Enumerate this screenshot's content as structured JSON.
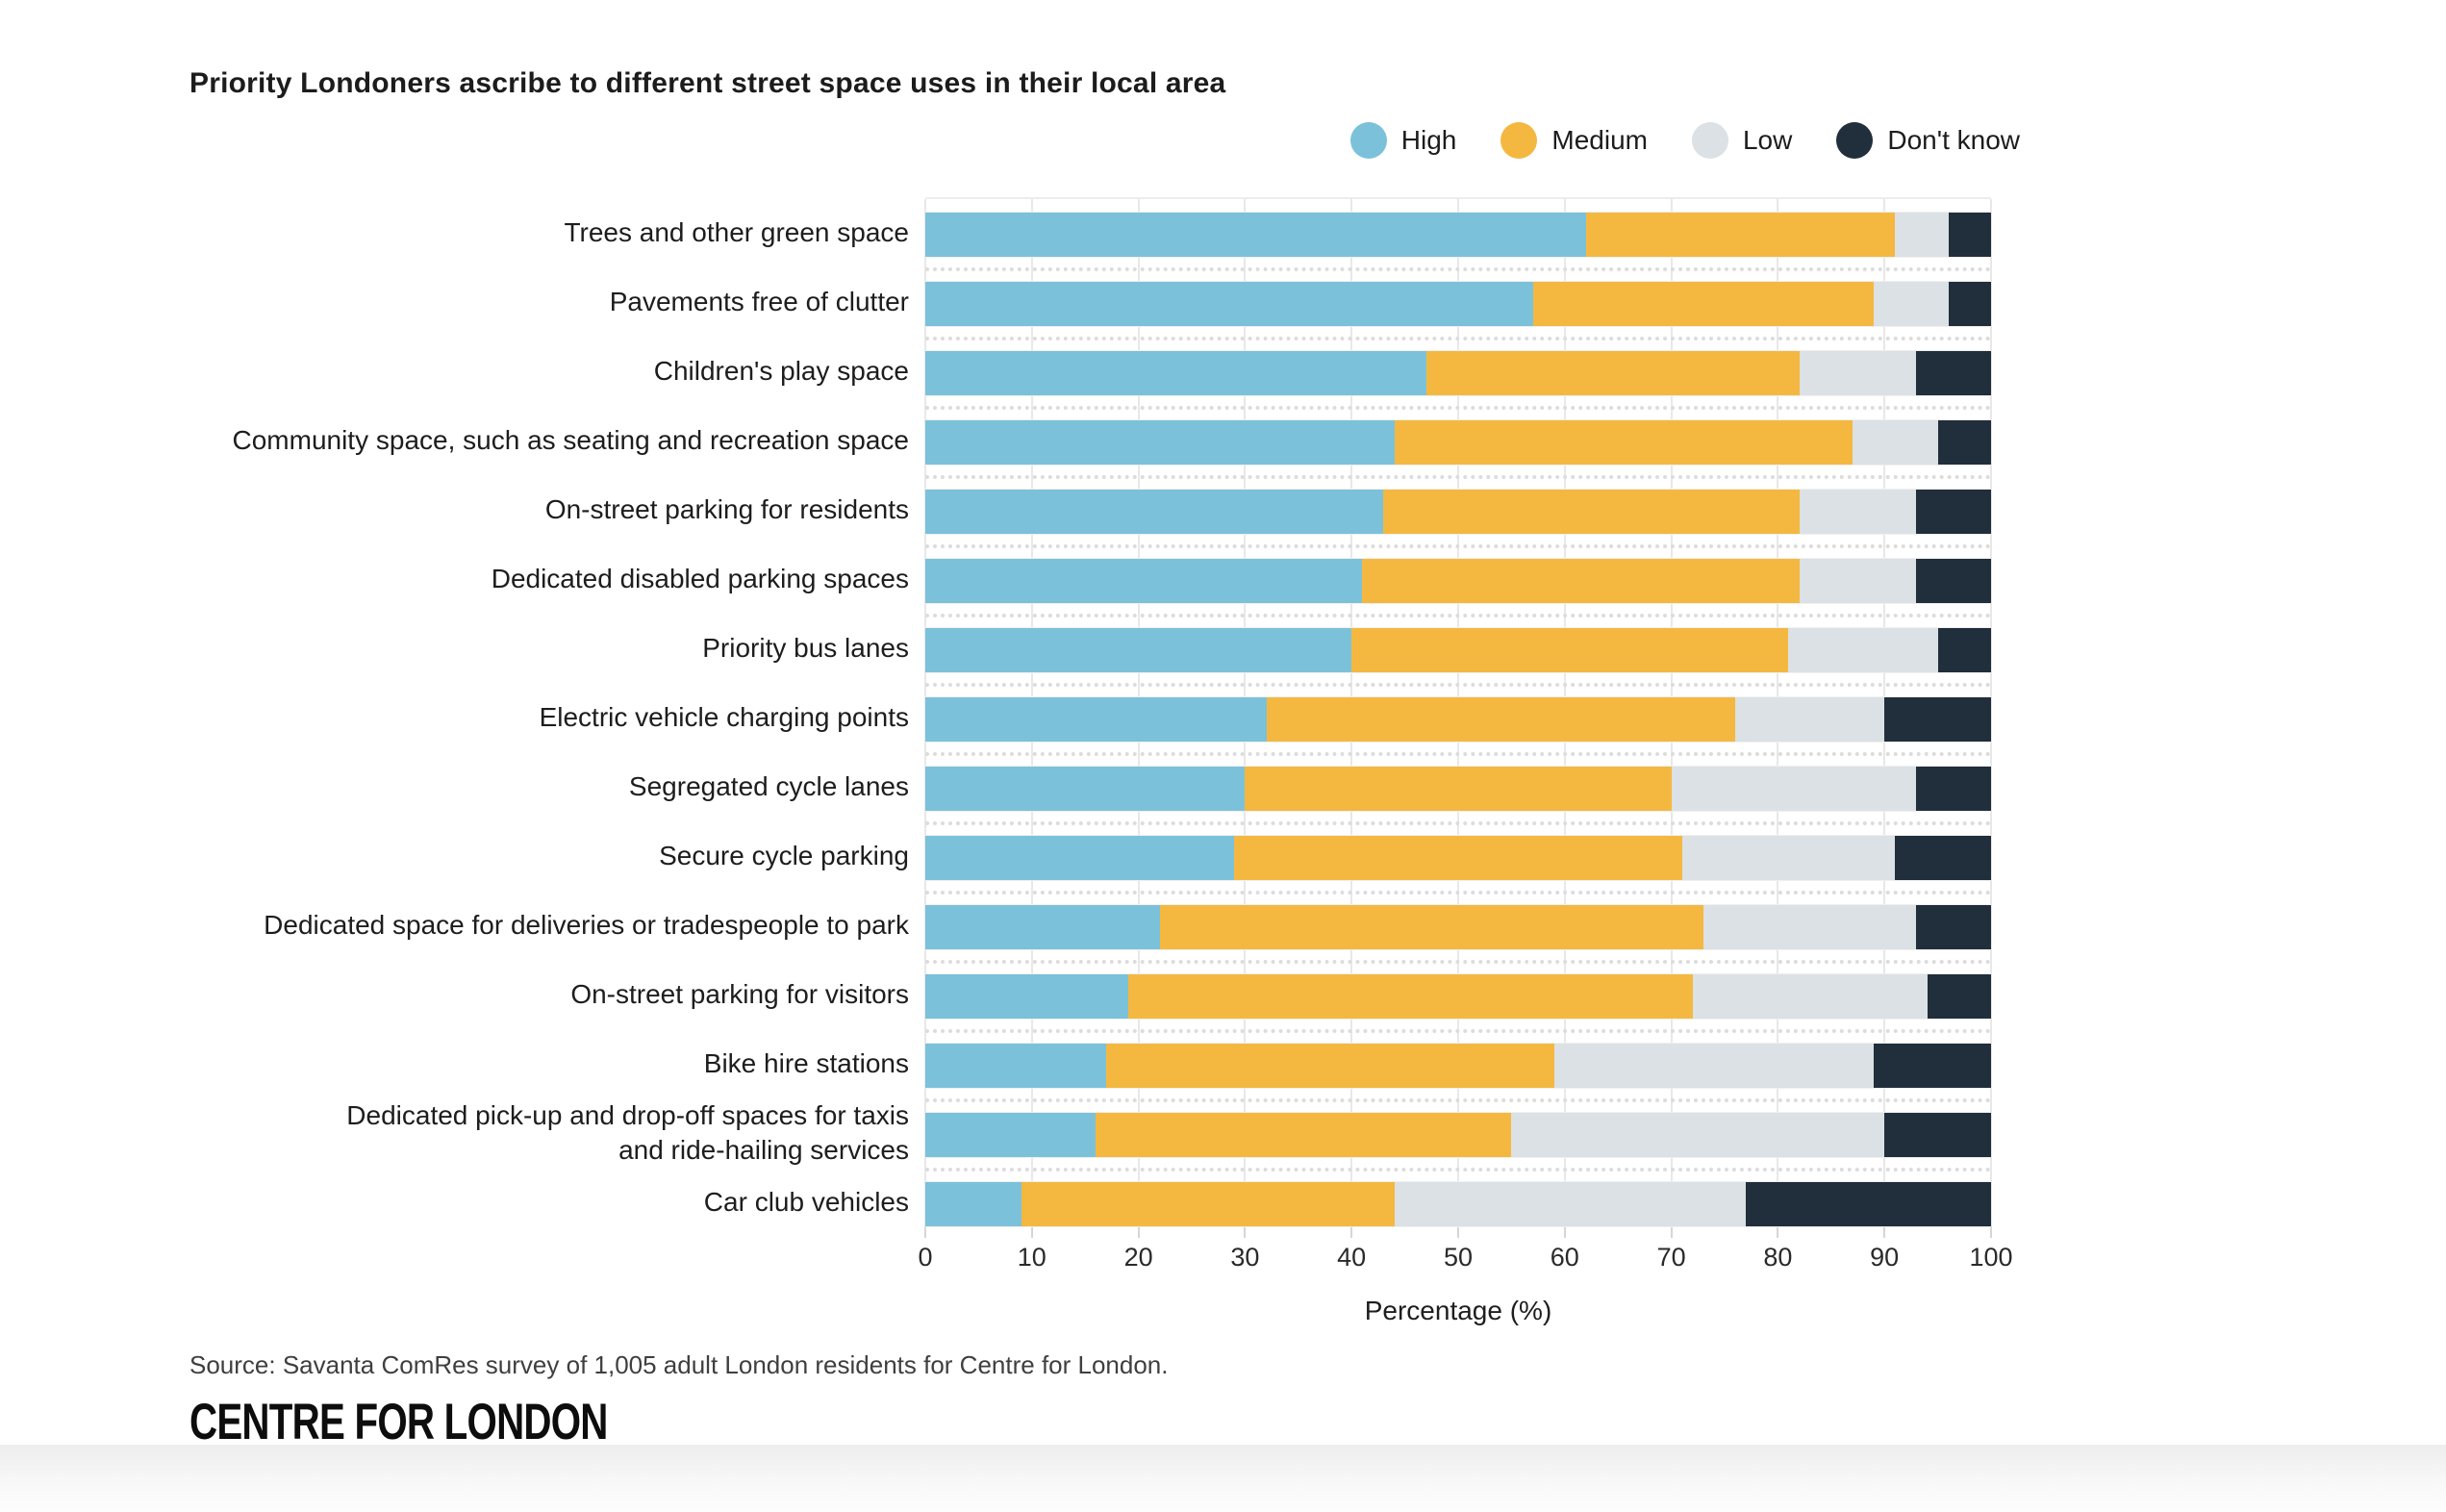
{
  "title": "Priority Londoners ascribe to different street space uses in their local area",
  "legend": {
    "items": [
      {
        "label": "High",
        "color": "#7cc1da"
      },
      {
        "label": "Medium",
        "color": "#f4b841"
      },
      {
        "label": "Low",
        "color": "#dbe1e4"
      },
      {
        "label": "Don't know",
        "color": "#212e3b"
      }
    ]
  },
  "chart_data": {
    "type": "bar",
    "orientation": "horizontal",
    "stacked": true,
    "title": "Priority Londoners ascribe to different street space uses in their local area",
    "xlabel": "Percentage (%)",
    "xlim": [
      0,
      100
    ],
    "x_ticks": [
      0,
      10,
      20,
      30,
      40,
      50,
      60,
      70,
      80,
      90,
      100
    ],
    "grid": "vertical-solid, horizontal-dashed-between-rows",
    "legend_position": "top-right",
    "categories": [
      "Trees and other green space",
      "Pavements free of clutter",
      "Children's play space",
      "Community space, such as seating and recreation space",
      "On-street parking for residents",
      "Dedicated disabled parking spaces",
      "Priority bus lanes",
      "Electric vehicle charging points",
      "Segregated cycle lanes",
      "Secure cycle parking",
      "Dedicated space for deliveries or tradespeople to park",
      "On-street parking for visitors",
      "Bike hire stations",
      "Dedicated pick-up and drop-off spaces for taxis\nand ride-hailing services",
      "Car club vehicles"
    ],
    "series": [
      {
        "name": "High",
        "color": "#7cc1da",
        "values": [
          62,
          57,
          47,
          44,
          43,
          41,
          40,
          32,
          30,
          29,
          22,
          19,
          17,
          16,
          9
        ]
      },
      {
        "name": "Medium",
        "color": "#f4b841",
        "values": [
          29,
          32,
          35,
          43,
          39,
          41,
          41,
          44,
          40,
          42,
          51,
          53,
          42,
          39,
          35
        ]
      },
      {
        "name": "Low",
        "color": "#dbe1e4",
        "values": [
          5,
          7,
          11,
          8,
          11,
          11,
          14,
          14,
          23,
          20,
          20,
          22,
          30,
          35,
          33
        ]
      },
      {
        "name": "Don't know",
        "color": "#212e3b",
        "values": [
          4,
          4,
          7,
          5,
          7,
          7,
          5,
          10,
          7,
          9,
          7,
          6,
          11,
          10,
          23
        ]
      }
    ]
  },
  "x_axis": {
    "label": "Percentage (%)"
  },
  "source": "Source: Savanta ComRes survey of 1,005 adult London residents for Centre for London.",
  "logo": "CENTRE FOR LONDON"
}
